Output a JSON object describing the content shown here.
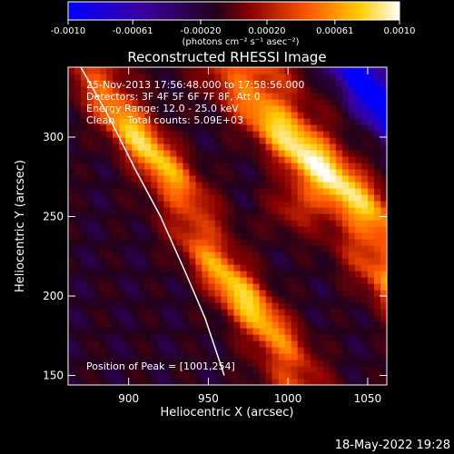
{
  "colorbar": {
    "ticks": [
      "-0.0010",
      "-0.00061",
      "-0.00020",
      "0.00020",
      "0.00061",
      "0.0010"
    ],
    "tick_values": [
      -0.001,
      -0.00061,
      -0.0002,
      0.0002,
      0.00061,
      0.001
    ],
    "range": [
      -0.001,
      0.001
    ],
    "unit_label": "(photons cm⁻² s⁻¹ asec⁻²)",
    "colormap": [
      "#0000ff",
      "#3a00a0",
      "#220018",
      "#8a0000",
      "#ff5500",
      "#ffcc00",
      "#ffffff"
    ]
  },
  "header": {
    "title": "Reconstructed RHESSI Image"
  },
  "annotation": {
    "lines": [
      "25-Nov-2013 17:56:48.000 to 17:58:56.000",
      "Detectors: 3F 4F 5F 6F 7F 8F, Att 0",
      "Energy Range: 12.0 - 25.0 keV",
      "Clean    Total counts: 5.09E+03"
    ],
    "peak": "Position of Peak = [1001,254]"
  },
  "footer": {
    "timestamp": "18-May-2022 19:28"
  },
  "chart_data": {
    "type": "heatmap",
    "title": "Reconstructed RHESSI Image",
    "xlabel": "Heliocentric X (arcsec)",
    "ylabel": "Heliocentric Y (arcsec)",
    "xlim": [
      862,
      1062
    ],
    "ylim": [
      144,
      344
    ],
    "xticks": [
      900,
      950,
      1000,
      1050
    ],
    "yticks": [
      150,
      200,
      250,
      300
    ],
    "xtick_labels": [
      "900",
      "950",
      "1000",
      "1050"
    ],
    "ytick_labels": [
      "150",
      "200",
      "250",
      "300"
    ],
    "peak": [
      1001,
      254
    ],
    "limb_curve": {
      "x": [
        870,
        888,
        904,
        920,
        936,
        948,
        960
      ],
      "y": [
        344,
        312,
        280,
        250,
        214,
        186,
        150
      ]
    },
    "bands": [
      {
        "name": "",
        "x_at_top": 875,
        "slope": -1.55,
        "width": 28,
        "intensity": 0.85
      },
      {
        "name": "",
        "x_at_top": 968,
        "slope": -1.3,
        "width": 38,
        "intensity": 1.0
      },
      {
        "name": "",
        "x_at_top": 1042,
        "slope": -1.35,
        "width": 30,
        "intensity": -0.7
      }
    ]
  }
}
